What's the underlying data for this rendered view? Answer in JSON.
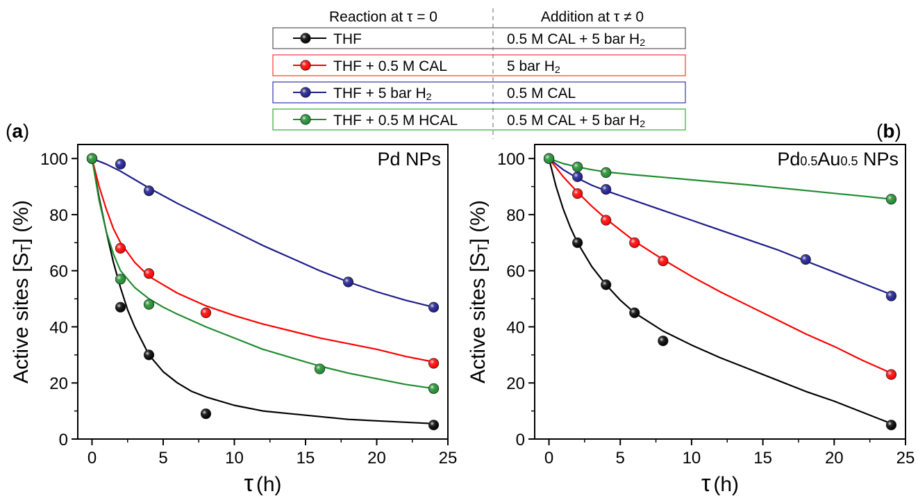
{
  "legend": {
    "header_left": "Reaction at τ = 0",
    "header_right": "Addition at τ ≠ 0",
    "entries": [
      {
        "reaction": "THF",
        "addition": "0.5 M CAL + 5 bar H",
        "addition_sub": "2",
        "color": "#000000",
        "border": "#555555"
      },
      {
        "reaction": "THF + 0.5 M CAL",
        "addition": "5 bar H",
        "addition_sub": "2",
        "color": "#ff0000",
        "border": "#ff3333"
      },
      {
        "reaction": "THF + 5 bar H",
        "reaction_sub": "2",
        "addition": "0.5 M CAL",
        "color": "#1c1c8c",
        "border": "#3333aa"
      },
      {
        "reaction": "THF + 0.5 M HCAL",
        "addition": "0.5 M CAL + 5 bar H",
        "addition_sub": "2",
        "color": "#1e8b2e",
        "border": "#33aa33"
      }
    ]
  },
  "chart_data": [
    {
      "type": "scatter",
      "panel_label": "a",
      "annotation": "Pd NPs",
      "xlabel": "τ",
      "xlabel_unit": "(h)",
      "ylabel": "Active sites [S",
      "ylabel_sub": "T",
      "ylabel_tail": "] (%)",
      "xlim": [
        -1,
        25
      ],
      "ylim": [
        0,
        105
      ],
      "xticks": [
        0,
        5,
        10,
        15,
        20,
        25
      ],
      "yticks": [
        0,
        20,
        40,
        60,
        80,
        100
      ],
      "series": [
        {
          "color": "#000000",
          "x": [
            0,
            2,
            4,
            8,
            24
          ],
          "y": [
            100,
            47,
            30,
            9,
            5
          ],
          "fit": [
            [
              0,
              100
            ],
            [
              0.5,
              86
            ],
            [
              1,
              74
            ],
            [
              1.5,
              63
            ],
            [
              2,
              54
            ],
            [
              2.5,
              46
            ],
            [
              3,
              40
            ],
            [
              3.5,
              35
            ],
            [
              4,
              30
            ],
            [
              5,
              24
            ],
            [
              6,
              20
            ],
            [
              7,
              17
            ],
            [
              8,
              15
            ],
            [
              10,
              12
            ],
            [
              12,
              10
            ],
            [
              14,
              9
            ],
            [
              16,
              8
            ],
            [
              18,
              7
            ],
            [
              20,
              6.5
            ],
            [
              22,
              6
            ],
            [
              24,
              5.5
            ]
          ]
        },
        {
          "color": "#ff0000",
          "x": [
            0,
            2,
            4,
            8,
            24
          ],
          "y": [
            100,
            68,
            59,
            45,
            27
          ],
          "fit": [
            [
              0,
              100
            ],
            [
              0.5,
              90
            ],
            [
              1,
              82
            ],
            [
              1.5,
              75
            ],
            [
              2,
              70
            ],
            [
              3,
              63
            ],
            [
              4,
              58
            ],
            [
              5,
              55
            ],
            [
              6,
              52
            ],
            [
              8,
              47.5
            ],
            [
              10,
              44
            ],
            [
              12,
              41
            ],
            [
              14,
              38.5
            ],
            [
              16,
              36
            ],
            [
              18,
              34
            ],
            [
              20,
              32
            ],
            [
              22,
              29.5
            ],
            [
              24,
              27.5
            ]
          ]
        },
        {
          "color": "#1c1c8c",
          "x": [
            0,
            2,
            4,
            18,
            24
          ],
          "y": [
            100,
            98,
            88.5,
            56,
            47
          ],
          "fit": [
            [
              0,
              100
            ],
            [
              1,
              98
            ],
            [
              2,
              95.5
            ],
            [
              3,
              92.5
            ],
            [
              4,
              89.5
            ],
            [
              6,
              84
            ],
            [
              8,
              79
            ],
            [
              10,
              74
            ],
            [
              12,
              69
            ],
            [
              14,
              64.5
            ],
            [
              16,
              60
            ],
            [
              18,
              56
            ],
            [
              20,
              52.5
            ],
            [
              22,
              49.5
            ],
            [
              24,
              47
            ]
          ]
        },
        {
          "color": "#1e8b2e",
          "x": [
            0,
            2,
            4,
            16,
            24
          ],
          "y": [
            100,
            57,
            48,
            25,
            18
          ],
          "fit": [
            [
              0,
              100
            ],
            [
              0.5,
              85
            ],
            [
              1,
              74
            ],
            [
              1.5,
              66
            ],
            [
              2,
              60
            ],
            [
              3,
              54
            ],
            [
              4,
              50
            ],
            [
              5,
              47
            ],
            [
              6,
              44.5
            ],
            [
              8,
              40
            ],
            [
              10,
              36
            ],
            [
              12,
              32
            ],
            [
              14,
              29
            ],
            [
              16,
              26
            ],
            [
              18,
              23.5
            ],
            [
              20,
              21.5
            ],
            [
              22,
              19.5
            ],
            [
              24,
              18
            ]
          ]
        }
      ]
    },
    {
      "type": "scatter",
      "panel_label": "b",
      "annotation": "Pd",
      "annotation_parts": [
        [
          "Pd",
          ""
        ],
        [
          "0.5",
          "sub"
        ],
        [
          "Au",
          ""
        ],
        [
          "0.5",
          "sub"
        ],
        [
          " NPs",
          ""
        ]
      ],
      "annotation_sub1": "0.5",
      "annotation_mid": "Au",
      "annotation_sub2": "0.5",
      "annotation_tail": " NPs",
      "xlabel": "τ",
      "xlabel_unit": "(h)",
      "ylabel": "Active sites [S",
      "ylabel_sub": "T",
      "ylabel_tail": "] (%)",
      "xlim": [
        -1,
        25
      ],
      "ylim": [
        0,
        105
      ],
      "xticks": [
        0,
        5,
        10,
        15,
        20,
        25
      ],
      "yticks": [
        0,
        20,
        40,
        60,
        80,
        100
      ],
      "series": [
        {
          "color": "#000000",
          "x": [
            0,
            2,
            4,
            6,
            8,
            24
          ],
          "y": [
            100,
            70,
            55,
            45,
            35,
            5
          ],
          "fit": [
            [
              0,
              100
            ],
            [
              0.5,
              90
            ],
            [
              1,
              82
            ],
            [
              1.5,
              75.5
            ],
            [
              2,
              70
            ],
            [
              3,
              61.5
            ],
            [
              4,
              55
            ],
            [
              5,
              49.5
            ],
            [
              6,
              45
            ],
            [
              8,
              38.5
            ],
            [
              10,
              33.5
            ],
            [
              12,
              29
            ],
            [
              14,
              25
            ],
            [
              16,
              21
            ],
            [
              18,
              17
            ],
            [
              20,
              13.5
            ],
            [
              22,
              9.5
            ],
            [
              24,
              5.5
            ]
          ]
        },
        {
          "color": "#ff0000",
          "x": [
            0,
            2,
            4,
            6,
            8,
            24
          ],
          "y": [
            100,
            87.5,
            78,
            70,
            63.5,
            23
          ],
          "fit": [
            [
              0,
              100
            ],
            [
              1,
              93.5
            ],
            [
              2,
              88
            ],
            [
              3,
              83
            ],
            [
              4,
              78.5
            ],
            [
              6,
              70.5
            ],
            [
              8,
              64
            ],
            [
              10,
              58
            ],
            [
              12,
              52.5
            ],
            [
              14,
              47.5
            ],
            [
              16,
              42.5
            ],
            [
              18,
              37.5
            ],
            [
              20,
              33
            ],
            [
              22,
              28
            ],
            [
              24,
              23.5
            ]
          ]
        },
        {
          "color": "#1c1c8c",
          "x": [
            0,
            2,
            4,
            18,
            24
          ],
          "y": [
            100,
            93.5,
            89,
            64,
            51
          ],
          "fit": [
            [
              0,
              100
            ],
            [
              1,
              96
            ],
            [
              2,
              93
            ],
            [
              3,
              90.5
            ],
            [
              4,
              88.5
            ],
            [
              6,
              85
            ],
            [
              8,
              81.5
            ],
            [
              10,
              78
            ],
            [
              12,
              74.5
            ],
            [
              14,
              71
            ],
            [
              16,
              67.5
            ],
            [
              18,
              63.5
            ],
            [
              20,
              59.5
            ],
            [
              22,
              55.5
            ],
            [
              24,
              51.5
            ]
          ]
        },
        {
          "color": "#1e8b2e",
          "x": [
            0,
            2,
            4,
            24
          ],
          "y": [
            100,
            97,
            95,
            85.5
          ],
          "fit": [
            [
              0,
              100
            ],
            [
              1,
              98.2
            ],
            [
              2,
              97
            ],
            [
              3,
              96
            ],
            [
              4,
              95.2
            ],
            [
              6,
              94.2
            ],
            [
              8,
              93.3
            ],
            [
              10,
              92.4
            ],
            [
              12,
              91.5
            ],
            [
              14,
              90.6
            ],
            [
              16,
              89.6
            ],
            [
              18,
              88.6
            ],
            [
              20,
              87.6
            ],
            [
              22,
              86.6
            ],
            [
              24,
              85.5
            ]
          ]
        }
      ]
    }
  ]
}
